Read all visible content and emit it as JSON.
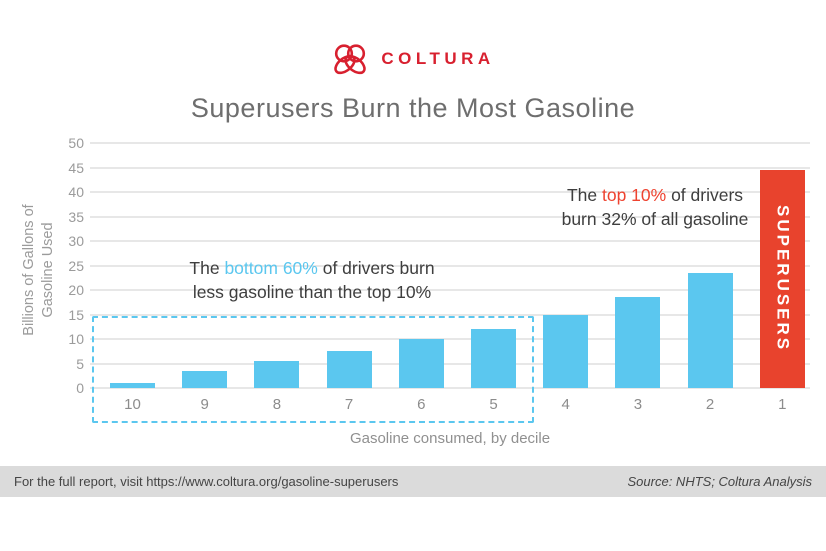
{
  "logo": {
    "wordmark": "COLTURA",
    "icon": "coltura-knot-heart",
    "color": "#d8202f"
  },
  "chart_data": {
    "type": "bar",
    "title": "Superusers Burn the Most Gasoline",
    "xlabel": "Gasoline consumed, by decile",
    "ylabel": "Billions of Gallons of Gasoline Used",
    "ylabel_lines": {
      "line1": "Billions of Gallons of",
      "line2": "Gasoline Used"
    },
    "categories": [
      "10",
      "9",
      "8",
      "7",
      "6",
      "5",
      "4",
      "3",
      "2",
      "1"
    ],
    "values": [
      1,
      3.5,
      5.5,
      7.5,
      10,
      12,
      15,
      18.5,
      23.5,
      44.5
    ],
    "ylim": [
      0,
      50
    ],
    "yticks": [
      0,
      5,
      10,
      15,
      20,
      25,
      30,
      35,
      40,
      45,
      50
    ],
    "grid": "horizontal",
    "legend": "none",
    "superuser_category": "1",
    "superuser_bar_label": "SUPERUSERS",
    "highlight_box": {
      "categories_covered": [
        "10",
        "9",
        "8",
        "7",
        "6",
        "5"
      ],
      "style": "dashed",
      "color": "#5bc7ef"
    }
  },
  "annotations": {
    "bottom": {
      "prefix": "The ",
      "highlight": "bottom 60%",
      "suffix": " of drivers burn",
      "line2": "less gasoline than the top 10%",
      "highlight_color": "#5bc7ef"
    },
    "top": {
      "prefix": "The ",
      "highlight": "top 10%",
      "suffix": " of drivers",
      "line2": "burn 32% of all gasoline",
      "highlight_color": "#ee4330"
    }
  },
  "colors": {
    "bar_default": "#5bc7ef",
    "bar_superuser": "#e8432d",
    "gridline": "#e7e7e7",
    "title_text": "#6e6e6e",
    "axis_text": "#9b9b9b"
  },
  "footer": {
    "report_link_text": "For the full report, visit https://www.coltura.org/gasoline-superusers",
    "source": "Source: NHTS; Coltura Analysis"
  }
}
